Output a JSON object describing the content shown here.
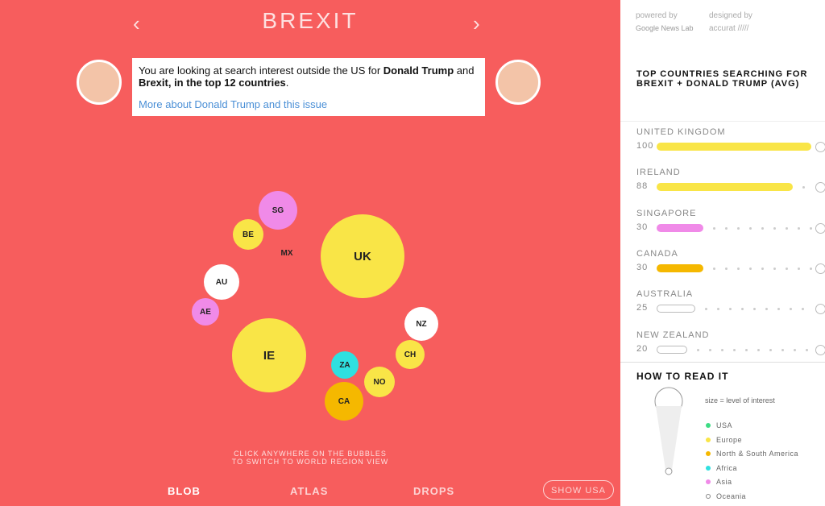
{
  "header": {
    "title": "BREXIT"
  },
  "tooltip": {
    "parts": [
      "You are looking at search interest outside the US for ",
      "Donald Trump",
      " and ",
      "Brexit, in the top 12 countries",
      "."
    ],
    "link": "More about Donald Trump and this issue"
  },
  "bubbles": [
    "UK",
    "IE",
    "SG",
    "BE",
    "MX",
    "AU",
    "AE",
    "NZ",
    "CH",
    "ZA",
    "NO",
    "CA"
  ],
  "hint": [
    "CLICK ANYWHERE ON THE BUBBLES",
    "TO SWITCH TO WORLD REGION VIEW"
  ],
  "nav": [
    "BLOB",
    "ATLAS",
    "DROPS"
  ],
  "show_usa": "SHOW USA",
  "credits": {
    "powered_label": "powered by",
    "powered_by": "Google News Lab",
    "designed_label": "designed by",
    "designed_by": "accurat /////"
  },
  "ranking": {
    "title": "TOP COUNTRIES SEARCHING FOR BREXIT + DONALD TRUMP (AVG)",
    "items": [
      {
        "name": "UNITED KINGDOM",
        "value": 100,
        "color": "#f9e547"
      },
      {
        "name": "IRELAND",
        "value": 88,
        "color": "#f9e547"
      },
      {
        "name": "SINGAPORE",
        "value": 30,
        "color": "#f08ae8"
      },
      {
        "name": "CANADA",
        "value": 30,
        "color": "#f5b800"
      },
      {
        "name": "AUSTRALIA",
        "value": 25,
        "color": "#ffffff"
      },
      {
        "name": "NEW ZEALAND",
        "value": 20,
        "color": "#ffffff"
      }
    ]
  },
  "how_to_read": {
    "title": "HOW TO READ IT",
    "size_note": "size = level of interest",
    "legend": [
      {
        "name": "USA",
        "color": "#3ddc84"
      },
      {
        "name": "Europe",
        "color": "#f9e547"
      },
      {
        "name": "North & South America",
        "color": "#f5b800"
      },
      {
        "name": "Africa",
        "color": "#2fe0e0"
      },
      {
        "name": "Asia",
        "color": "#f08ae8"
      },
      {
        "name": "Oceania",
        "color": "#ffffff"
      }
    ]
  }
}
